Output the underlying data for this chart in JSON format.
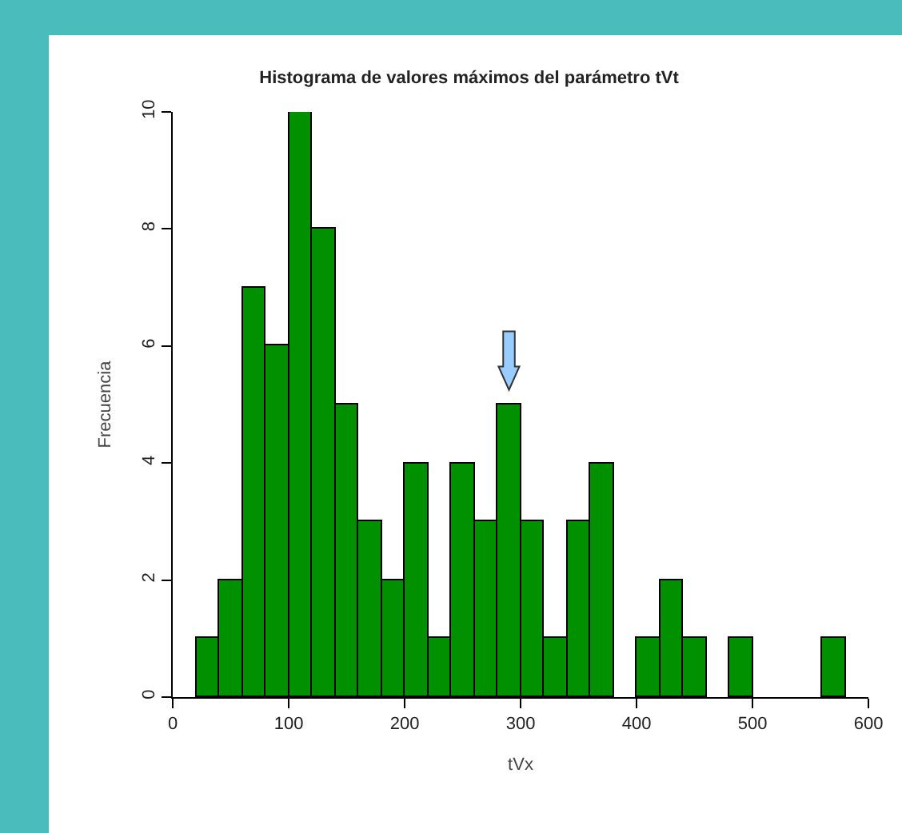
{
  "chart_data": {
    "type": "histogram",
    "title": "Histograma de valores máximos del parámetro tVt",
    "xlabel": "tVx",
    "ylabel": "Frecuencia",
    "bins": [
      20,
      40,
      60,
      80,
      100,
      120,
      140,
      160,
      180,
      200,
      220,
      240,
      260,
      280,
      300,
      320,
      340,
      360,
      380,
      400,
      420,
      440,
      460,
      480,
      500,
      520,
      540,
      560,
      580
    ],
    "values": [
      1,
      2,
      7,
      6,
      10,
      8,
      5,
      3,
      2,
      4,
      1,
      4,
      3,
      5,
      3,
      1,
      3,
      4,
      0,
      1,
      2,
      1,
      0,
      1,
      0,
      0,
      0,
      1
    ],
    "color": "#009000",
    "xlim": [
      0,
      600
    ],
    "xticks": [
      0,
      100,
      200,
      300,
      400,
      500,
      600
    ],
    "ylim": [
      0,
      10
    ],
    "yticks": [
      0,
      2,
      4,
      6,
      8,
      10
    ]
  }
}
